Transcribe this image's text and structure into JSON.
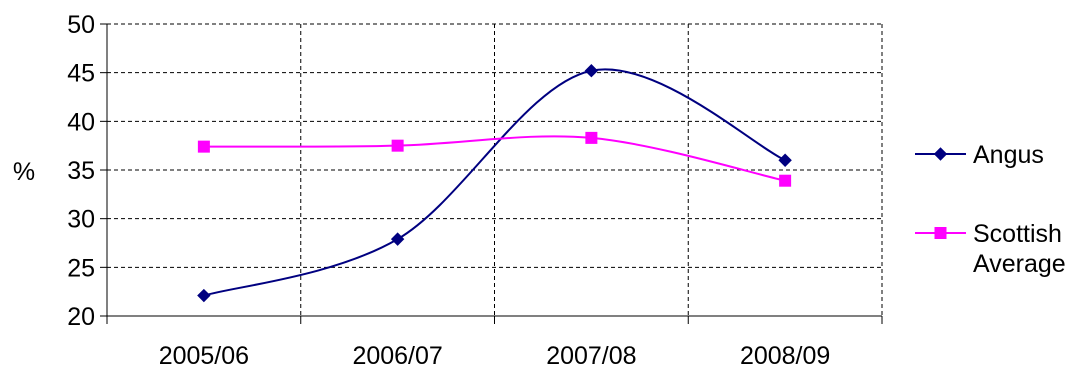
{
  "chart_data": {
    "type": "line",
    "categories": [
      "2005/06",
      "2006/07",
      "2007/08",
      "2008/09"
    ],
    "series": [
      {
        "name": "Angus",
        "values": [
          22.1,
          27.9,
          45.2,
          36.0
        ],
        "color": "#000080",
        "marker": "diamond"
      },
      {
        "name": "Scottish Average",
        "name_lines": [
          "Scottish",
          "Average"
        ],
        "values": [
          37.4,
          37.5,
          38.3,
          33.9
        ],
        "color": "#FF00FF",
        "marker": "square"
      }
    ],
    "ylabel": "%",
    "ylim": [
      20,
      50
    ],
    "yticks": [
      20,
      25,
      30,
      35,
      40,
      45,
      50
    ],
    "ytick_labels": [
      "20",
      "25",
      "30",
      "35",
      "40",
      "45",
      "50"
    ],
    "grid": true,
    "smooth": true,
    "legend_position": "right"
  }
}
